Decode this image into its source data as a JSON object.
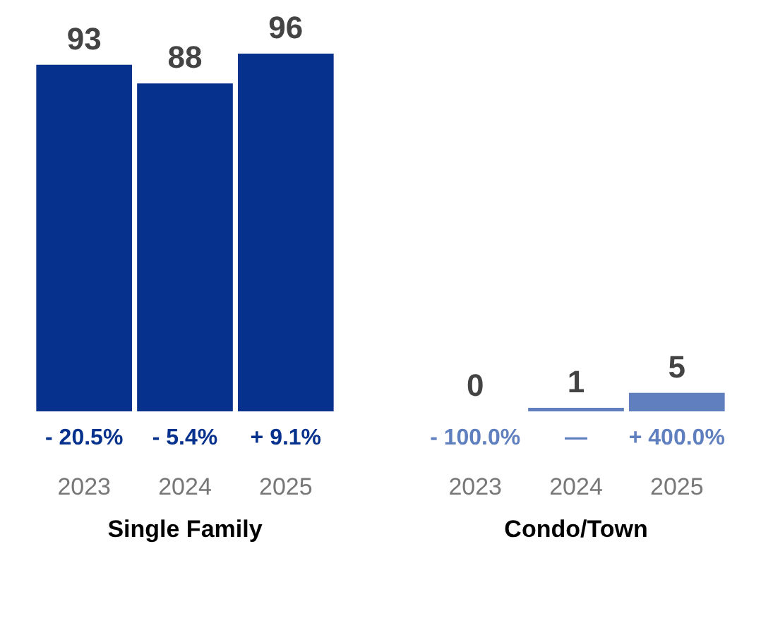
{
  "chart_data": [
    {
      "type": "bar",
      "xlabel": "Single Family",
      "categories": [
        "2023",
        "2024",
        "2025"
      ],
      "values": [
        93,
        88,
        96
      ],
      "color": "#06318c",
      "data_labels": true,
      "grid": false,
      "legend": false,
      "tick_labels": "x",
      "annotations": [
        "- 20.5%",
        "- 5.4%",
        "+ 9.1%"
      ]
    },
    {
      "type": "bar",
      "xlabel": "Condo/Town",
      "categories": [
        "2023",
        "2024",
        "2025"
      ],
      "values": [
        0,
        1,
        5
      ],
      "color": "#5f7fbf",
      "data_labels": true,
      "grid": false,
      "legend": false,
      "tick_labels": "x",
      "annotations": [
        "- 100.0%",
        "—",
        "+ 400.0%"
      ]
    }
  ]
}
